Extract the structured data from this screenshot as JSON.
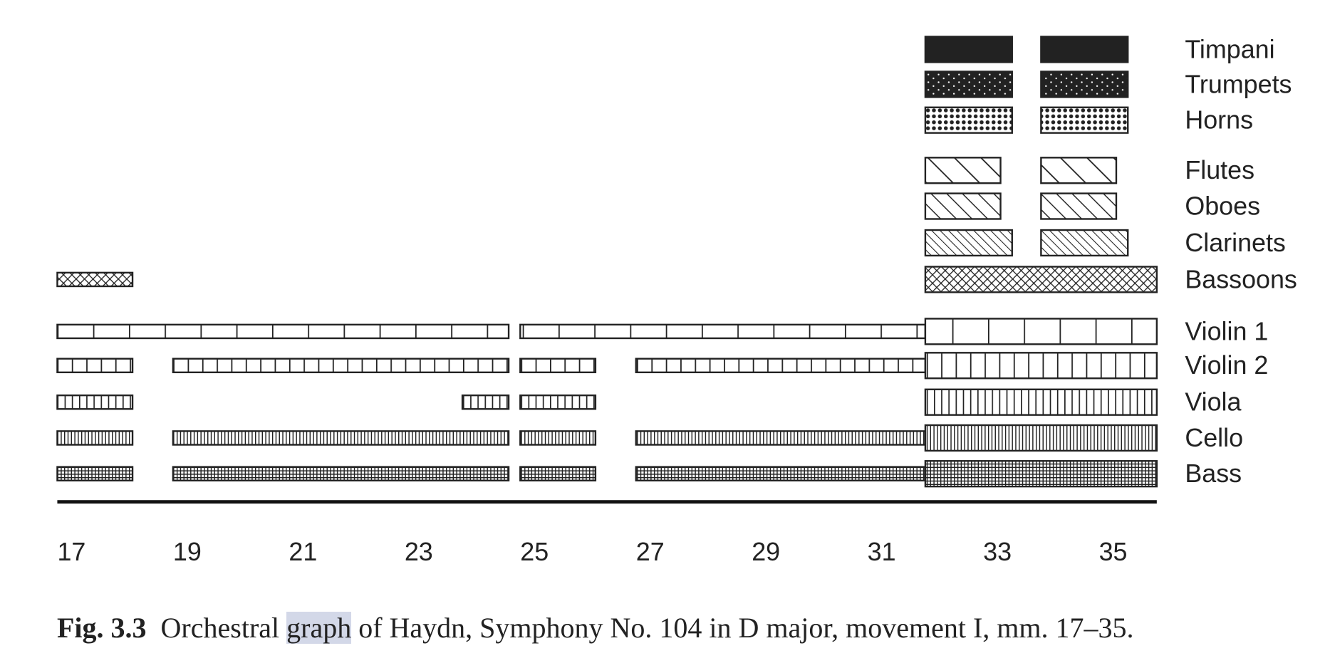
{
  "chart_data": {
    "type": "orchestral-graph",
    "xlim": [
      17,
      36
    ],
    "xticks": [
      17,
      19,
      21,
      23,
      25,
      27,
      29,
      31,
      33,
      35
    ],
    "series": [
      {
        "name": "Timpani",
        "pattern": "solid",
        "segments": [
          [
            32,
            33.5,
            true
          ],
          [
            34,
            35.5,
            true
          ]
        ]
      },
      {
        "name": "Trumpets",
        "pattern": "dark-dots",
        "segments": [
          [
            32,
            33.5,
            true
          ],
          [
            34,
            35.5,
            true
          ]
        ]
      },
      {
        "name": "Horns",
        "pattern": "dots",
        "segments": [
          [
            32,
            33.5,
            true
          ],
          [
            34,
            35.5,
            true
          ]
        ]
      },
      {
        "name": "Flutes",
        "pattern": "diag-wide",
        "segments": [
          [
            32,
            33.3,
            true
          ],
          [
            34,
            35.3,
            true
          ]
        ]
      },
      {
        "name": "Oboes",
        "pattern": "diag",
        "segments": [
          [
            32,
            33.3,
            true
          ],
          [
            34,
            35.3,
            true
          ]
        ]
      },
      {
        "name": "Clarinets",
        "pattern": "diag-dense",
        "segments": [
          [
            32,
            33.5,
            true
          ],
          [
            34,
            35.5,
            true
          ]
        ]
      },
      {
        "name": "Bassoons",
        "pattern": "cross",
        "segments": [
          [
            17,
            18.3,
            false
          ],
          [
            32,
            36,
            true
          ]
        ]
      },
      {
        "name": "Violin 1",
        "pattern": "cells-42",
        "segments": [
          [
            17,
            24.8,
            false
          ],
          [
            25,
            32,
            false
          ],
          [
            32,
            36,
            true
          ]
        ]
      },
      {
        "name": "Violin 2",
        "pattern": "cells-17",
        "segments": [
          [
            17,
            18.3,
            false
          ],
          [
            19,
            24.8,
            false
          ],
          [
            25,
            26.3,
            false
          ],
          [
            27,
            32,
            false
          ],
          [
            32,
            36,
            true
          ]
        ]
      },
      {
        "name": "Viola",
        "pattern": "cells-8",
        "segments": [
          [
            17,
            18.3,
            false
          ],
          [
            24,
            24.8,
            false
          ],
          [
            25,
            26.3,
            false
          ],
          [
            32,
            36,
            true
          ]
        ]
      },
      {
        "name": "Cello",
        "pattern": "cells-4",
        "segments": [
          [
            17,
            18.3,
            false
          ],
          [
            19,
            24.8,
            false
          ],
          [
            25,
            26.3,
            false
          ],
          [
            27,
            32,
            false
          ],
          [
            32,
            36,
            true
          ]
        ]
      },
      {
        "name": "Bass",
        "pattern": "grid",
        "segments": [
          [
            17,
            18.3,
            false
          ],
          [
            19,
            24.8,
            false
          ],
          [
            25,
            26.3,
            false
          ],
          [
            27,
            32,
            false
          ],
          [
            32,
            36,
            true
          ]
        ]
      }
    ],
    "caption": {
      "label": "Fig. 3.3",
      "parts": [
        "Orchestral ",
        "graph",
        " of Haydn, Symphony No. 104 in D major, movement I, mm. 17–35."
      ]
    }
  }
}
